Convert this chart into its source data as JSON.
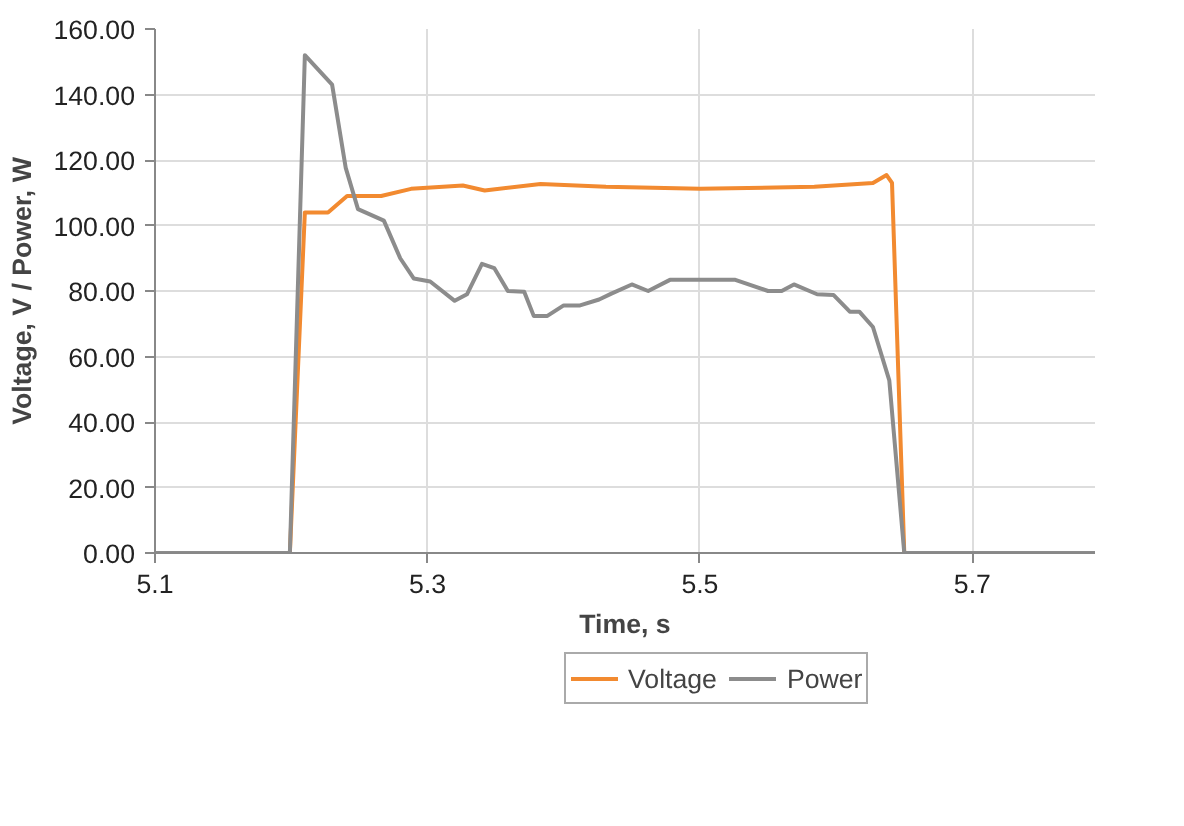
{
  "chart_data": {
    "type": "line",
    "xlabel": "Time, s",
    "ylabel": "Voltage, V / Power, W",
    "xlim": [
      5.1,
      5.79
    ],
    "ylim": [
      0,
      160
    ],
    "xticks": [
      5.1,
      5.3,
      5.5,
      5.7
    ],
    "yticks": [
      {
        "value": 0,
        "label": "0.00"
      },
      {
        "value": 20,
        "label": "20.00"
      },
      {
        "value": 40,
        "label": "40.00"
      },
      {
        "value": 60,
        "label": "60.00"
      },
      {
        "value": 80,
        "label": "80.00"
      },
      {
        "value": 100,
        "label": "100.00"
      },
      {
        "value": 120,
        "label": "120.00"
      },
      {
        "value": 140,
        "label": "140.00"
      },
      {
        "value": 160,
        "label": "160.00"
      }
    ],
    "grid": true,
    "legend": "bottom",
    "marker": "none",
    "line_style": "solid",
    "series": [
      {
        "name": "Voltage",
        "color": "#f28a30",
        "x": [
          5.1,
          5.199,
          5.21,
          5.227,
          5.241,
          5.266,
          5.288,
          5.326,
          5.342,
          5.383,
          5.431,
          5.5,
          5.584,
          5.627,
          5.637,
          5.641,
          5.65,
          5.79
        ],
        "values": [
          0,
          0,
          104,
          104,
          109,
          109,
          111.2,
          112.2,
          110.7,
          112.7,
          111.8,
          111.2,
          111.8,
          113,
          115.4,
          113,
          0,
          0
        ]
      },
      {
        "name": "Power",
        "color": "#8c8c8c",
        "x": [
          5.1,
          5.199,
          5.21,
          5.23,
          5.24,
          5.249,
          5.268,
          5.28,
          5.29,
          5.302,
          5.32,
          5.329,
          5.34,
          5.349,
          5.359,
          5.371,
          5.378,
          5.388,
          5.4,
          5.412,
          5.426,
          5.435,
          5.45,
          5.462,
          5.478,
          5.526,
          5.55,
          5.56,
          5.569,
          5.586,
          5.598,
          5.61,
          5.617,
          5.627,
          5.639,
          5.65,
          5.79
        ],
        "values": [
          0,
          0,
          152,
          143,
          117.6,
          105,
          101.5,
          90,
          83.8,
          82.9,
          77,
          79,
          88.3,
          87,
          80,
          79.8,
          72.4,
          72.4,
          75.6,
          75.6,
          77.4,
          79.2,
          82,
          80,
          83.4,
          83.4,
          80,
          80,
          82,
          79,
          78.8,
          73.7,
          73.7,
          69,
          52.7,
          0,
          0
        ]
      }
    ]
  }
}
